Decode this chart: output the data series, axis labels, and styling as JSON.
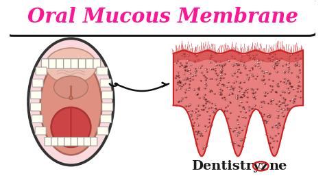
{
  "background_color": "#ffffff",
  "title_text": "Oral Mucous Membrane",
  "title_color": "#FF1493",
  "title_fontsize": 21,
  "title_box_color": "#111111",
  "brand_color": "#1a1a1a",
  "brand_fontsize": 14,
  "arrow_color": "#111111",
  "face_color": "#FADADD",
  "face_edge": "#333333",
  "mouth_color": "#E8A090",
  "palate_color": "#F0B8B0",
  "tongue_color": "#CC5555",
  "tooth_color": "#FFFEF0",
  "tooth_edge": "#999999",
  "tissue_fill": "#E87575",
  "tissue_edge": "#CC2222",
  "tissue_bg": "#F8E8E8",
  "cell_fill": "#FDDCDC",
  "cell_edge": "#882222"
}
